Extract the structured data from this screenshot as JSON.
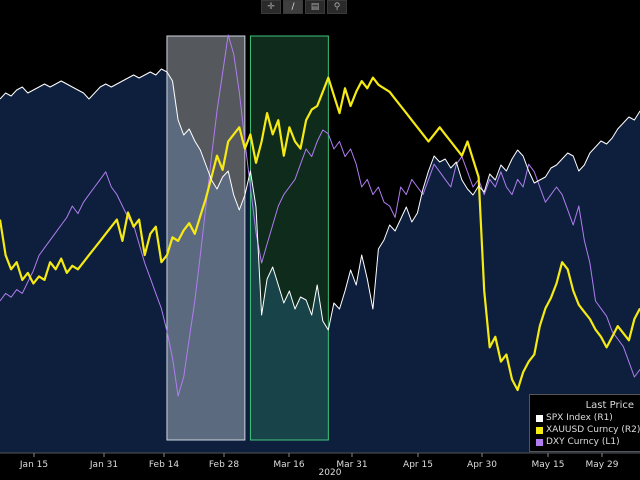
{
  "toolbar": {
    "icons": [
      "crosshair-icon",
      "pencil-icon",
      "table-icon",
      "magnifier-icon"
    ],
    "glyphs": [
      "✛",
      "∕",
      "▤",
      "⚲"
    ]
  },
  "chart_data": {
    "type": "line",
    "x_tick_labels": [
      "Jan 15",
      "Jan 31",
      "Feb 14",
      "Feb 28",
      "Mar 16",
      "Mar 31",
      "Apr 15",
      "Apr 30",
      "May 15",
      "May 29"
    ],
    "x_year_label": "2020",
    "legend": {
      "title": "Last Price",
      "placement": "bottom-right",
      "entries": [
        {
          "name": "SPX Index  (R1)",
          "color": "#ffffff"
        },
        {
          "name": "XAUUSD Curncy  (R2)",
          "color": "#f5ea14"
        },
        {
          "name": "DXY Curncy  (L1)",
          "color": "#b07cf0"
        }
      ]
    },
    "colors": {
      "background": "#000000",
      "area_fill": "#0d1f3c",
      "highlight_1": "#bcc5d0",
      "highlight_2": "#3fc47a"
    },
    "grid": false,
    "series": [
      {
        "name": "SPX Index  (R1)",
        "color": "#ffffff",
        "style": "area",
        "values": [
          0.82,
          0.84,
          0.83,
          0.85,
          0.86,
          0.84,
          0.85,
          0.86,
          0.87,
          0.86,
          0.87,
          0.88,
          0.87,
          0.86,
          0.85,
          0.84,
          0.82,
          0.84,
          0.86,
          0.87,
          0.86,
          0.87,
          0.88,
          0.89,
          0.9,
          0.89,
          0.9,
          0.91,
          0.9,
          0.92,
          0.91,
          0.88,
          0.75,
          0.7,
          0.72,
          0.68,
          0.65,
          0.6,
          0.55,
          0.52,
          0.56,
          0.58,
          0.5,
          0.45,
          0.5,
          0.58,
          0.46,
          0.1,
          0.22,
          0.26,
          0.2,
          0.14,
          0.18,
          0.12,
          0.16,
          0.15,
          0.1,
          0.2,
          0.08,
          0.05,
          0.14,
          0.12,
          0.18,
          0.25,
          0.2,
          0.3,
          0.22,
          0.12,
          0.32,
          0.35,
          0.4,
          0.38,
          0.42,
          0.46,
          0.41,
          0.44,
          0.52,
          0.58,
          0.63,
          0.61,
          0.62,
          0.59,
          0.61,
          0.55,
          0.52,
          0.5,
          0.53,
          0.51,
          0.57,
          0.55,
          0.6,
          0.58,
          0.62,
          0.65,
          0.63,
          0.58,
          0.54,
          0.55,
          0.56,
          0.59,
          0.6,
          0.62,
          0.64,
          0.63,
          0.58,
          0.6,
          0.64,
          0.66,
          0.68,
          0.67,
          0.69,
          0.72,
          0.74,
          0.76,
          0.75,
          0.78
        ]
      },
      {
        "name": "XAUUSD Curncy  (R2)",
        "color": "#f5ea14",
        "style": "line",
        "values": [
          0.48,
          0.38,
          0.34,
          0.36,
          0.31,
          0.33,
          0.3,
          0.32,
          0.31,
          0.36,
          0.34,
          0.37,
          0.33,
          0.35,
          0.34,
          0.36,
          0.38,
          0.4,
          0.42,
          0.44,
          0.46,
          0.48,
          0.42,
          0.5,
          0.46,
          0.48,
          0.38,
          0.44,
          0.46,
          0.36,
          0.38,
          0.43,
          0.42,
          0.45,
          0.47,
          0.44,
          0.49,
          0.54,
          0.6,
          0.66,
          0.62,
          0.7,
          0.72,
          0.74,
          0.68,
          0.72,
          0.64,
          0.7,
          0.78,
          0.72,
          0.76,
          0.66,
          0.74,
          0.7,
          0.68,
          0.76,
          0.79,
          0.8,
          0.84,
          0.88,
          0.83,
          0.78,
          0.85,
          0.8,
          0.84,
          0.87,
          0.85,
          0.88,
          0.86,
          0.85,
          0.84,
          0.82,
          0.8,
          0.78,
          0.76,
          0.74,
          0.72,
          0.7,
          0.72,
          0.74,
          0.72,
          0.7,
          0.68,
          0.66,
          0.7,
          0.65,
          0.6,
          0.28,
          0.12,
          0.15,
          0.08,
          0.1,
          0.03,
          0.0,
          0.05,
          0.08,
          0.1,
          0.18,
          0.23,
          0.26,
          0.3,
          0.36,
          0.34,
          0.28,
          0.24,
          0.22,
          0.2,
          0.17,
          0.15,
          0.12,
          0.15,
          0.18,
          0.16,
          0.14,
          0.2,
          0.23
        ]
      },
      {
        "name": "DXY Curncy  (L1)",
        "color": "#b07cf0",
        "style": "line",
        "values": [
          0.3,
          0.32,
          0.31,
          0.33,
          0.32,
          0.35,
          0.38,
          0.42,
          0.44,
          0.46,
          0.48,
          0.5,
          0.52,
          0.55,
          0.53,
          0.56,
          0.58,
          0.6,
          0.62,
          0.64,
          0.6,
          0.58,
          0.55,
          0.52,
          0.5,
          0.45,
          0.4,
          0.36,
          0.32,
          0.28,
          0.22,
          0.15,
          0.05,
          0.1,
          0.2,
          0.3,
          0.42,
          0.55,
          0.68,
          0.8,
          0.9,
          1.0,
          0.95,
          0.85,
          0.72,
          0.6,
          0.48,
          0.4,
          0.45,
          0.5,
          0.55,
          0.58,
          0.6,
          0.62,
          0.66,
          0.7,
          0.68,
          0.72,
          0.75,
          0.74,
          0.7,
          0.72,
          0.68,
          0.7,
          0.66,
          0.6,
          0.62,
          0.58,
          0.6,
          0.56,
          0.55,
          0.52,
          0.6,
          0.58,
          0.62,
          0.6,
          0.58,
          0.62,
          0.66,
          0.64,
          0.62,
          0.6,
          0.66,
          0.68,
          0.64,
          0.6,
          0.62,
          0.58,
          0.62,
          0.6,
          0.64,
          0.6,
          0.58,
          0.62,
          0.6,
          0.66,
          0.64,
          0.6,
          0.56,
          0.58,
          0.6,
          0.58,
          0.54,
          0.5,
          0.55,
          0.46,
          0.4,
          0.3,
          0.28,
          0.26,
          0.22,
          0.2,
          0.18,
          0.14,
          0.1,
          0.12
        ]
      }
    ],
    "highlights": [
      {
        "label": "",
        "from_index": 30,
        "to_index": 44,
        "color": "#bcc5d0"
      },
      {
        "label": "",
        "from_index": 45,
        "to_index": 59,
        "color": "#3fc47a"
      }
    ]
  }
}
